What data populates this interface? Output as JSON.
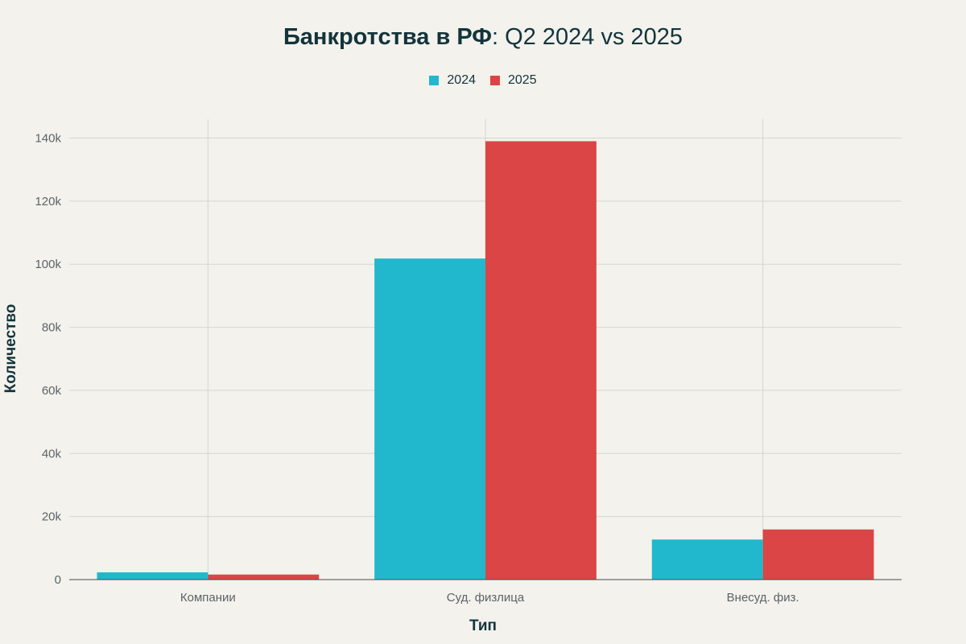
{
  "chart_data": {
    "type": "bar",
    "title_bold": "Банкротства в РФ",
    "title_rest": ": Q2 2024 vs 2025",
    "xlabel": "Тип",
    "ylabel": "Количество",
    "categories": [
      "Компании",
      "Суд. физлица",
      "Внесуд. физ."
    ],
    "series": [
      {
        "name": "2024",
        "color": "#21b8cd",
        "values": [
          2300,
          101800,
          12700
        ]
      },
      {
        "name": "2025",
        "color": "#db4545",
        "values": [
          1600,
          139000,
          15900
        ]
      }
    ],
    "ylim": [
      0,
      146000
    ],
    "yticks": [
      0,
      20000,
      40000,
      60000,
      80000,
      100000,
      120000,
      140000
    ],
    "ytick_labels": [
      "0",
      "20k",
      "40k",
      "60k",
      "80k",
      "100k",
      "120k",
      "140k"
    ],
    "grid": true,
    "legend_position": "top-center"
  }
}
